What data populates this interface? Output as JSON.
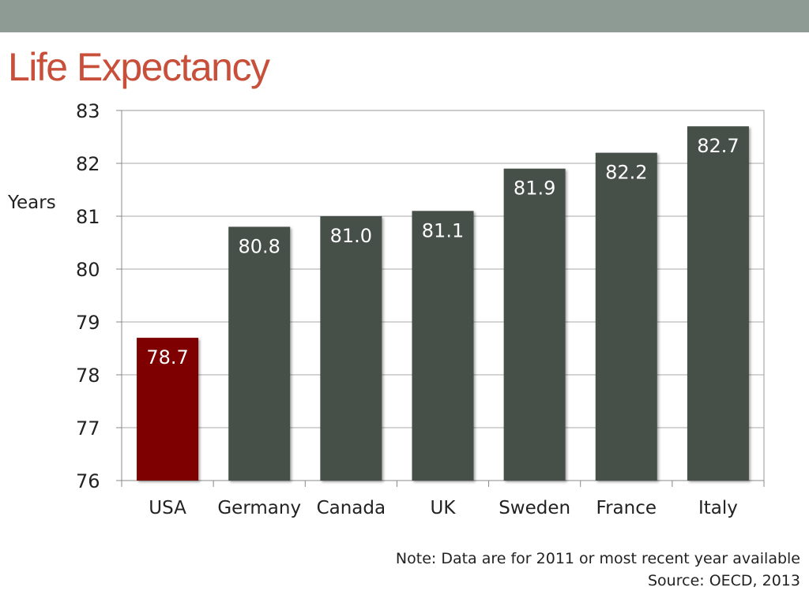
{
  "slide": {
    "title": "Life Expectancy",
    "note": "Note: Data are for 2011 or most recent year available",
    "source": "Source: OECD, 2013"
  },
  "colors": {
    "header_band": "#8d9b94",
    "title": "#c8503b",
    "bar_default": "#475049",
    "bar_highlight": "#7f0000"
  },
  "chart_data": {
    "type": "bar",
    "title": "Life Expectancy",
    "xlabel": "",
    "ylabel": "Years",
    "categories": [
      "USA",
      "Germany",
      "Canada",
      "UK",
      "Sweden",
      "France",
      "Italy"
    ],
    "values": [
      78.7,
      80.8,
      81.0,
      81.1,
      81.9,
      82.2,
      82.7
    ],
    "value_labels": [
      "78.7",
      "80.8",
      "81.0",
      "81.1",
      "81.9",
      "82.2",
      "82.7"
    ],
    "highlight_index": 0,
    "ylim": [
      76,
      83
    ],
    "yticks": [
      76,
      77,
      78,
      79,
      80,
      81,
      82,
      83
    ],
    "grid": true,
    "legend": "none"
  }
}
